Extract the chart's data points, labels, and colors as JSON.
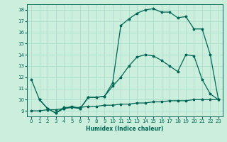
{
  "xlabel": "Humidex (Indice chaleur)",
  "bg_color": "#cceedd",
  "grid_color": "#aaddcc",
  "line_color": "#006655",
  "xlim": [
    -0.5,
    23.5
  ],
  "ylim": [
    8.5,
    18.5
  ],
  "xticks": [
    0,
    1,
    2,
    3,
    4,
    5,
    6,
    7,
    8,
    9,
    10,
    11,
    12,
    13,
    14,
    15,
    16,
    17,
    18,
    19,
    20,
    21,
    22,
    23
  ],
  "yticks": [
    9,
    10,
    11,
    12,
    13,
    14,
    15,
    16,
    17,
    18
  ],
  "line1_x": [
    0,
    1,
    2,
    3,
    4,
    5,
    6,
    7,
    8,
    9,
    10,
    11,
    12,
    13,
    14,
    15,
    16,
    17,
    18,
    19,
    20,
    21,
    22,
    23
  ],
  "line1_y": [
    9.0,
    9.0,
    9.1,
    9.1,
    9.2,
    9.3,
    9.3,
    9.4,
    9.4,
    9.5,
    9.5,
    9.6,
    9.6,
    9.7,
    9.7,
    9.8,
    9.8,
    9.9,
    9.9,
    9.9,
    10.0,
    10.0,
    10.0,
    10.0
  ],
  "line2_x": [
    1,
    2,
    3,
    4,
    5,
    6,
    7,
    8,
    9,
    10,
    11,
    12,
    13,
    14,
    15,
    16,
    17,
    18,
    19,
    20,
    21,
    22,
    23
  ],
  "line2_y": [
    10.0,
    9.2,
    8.8,
    9.3,
    9.3,
    9.2,
    10.2,
    10.2,
    10.3,
    11.2,
    12.0,
    13.0,
    13.8,
    14.0,
    13.9,
    13.5,
    13.0,
    12.5,
    14.0,
    13.9,
    11.8,
    10.5,
    10.0
  ],
  "line3_x": [
    0,
    1,
    2,
    3,
    4,
    5,
    6,
    7,
    8,
    9,
    10,
    11,
    12,
    13,
    14,
    15,
    16,
    17,
    18,
    19,
    20,
    21,
    22,
    23
  ],
  "line3_y": [
    11.8,
    10.0,
    9.2,
    8.8,
    9.2,
    9.4,
    9.2,
    10.2,
    10.2,
    10.3,
    11.5,
    16.6,
    17.2,
    17.7,
    18.0,
    18.1,
    17.8,
    17.8,
    17.3,
    17.4,
    16.3,
    16.3,
    14.0,
    10.0
  ]
}
